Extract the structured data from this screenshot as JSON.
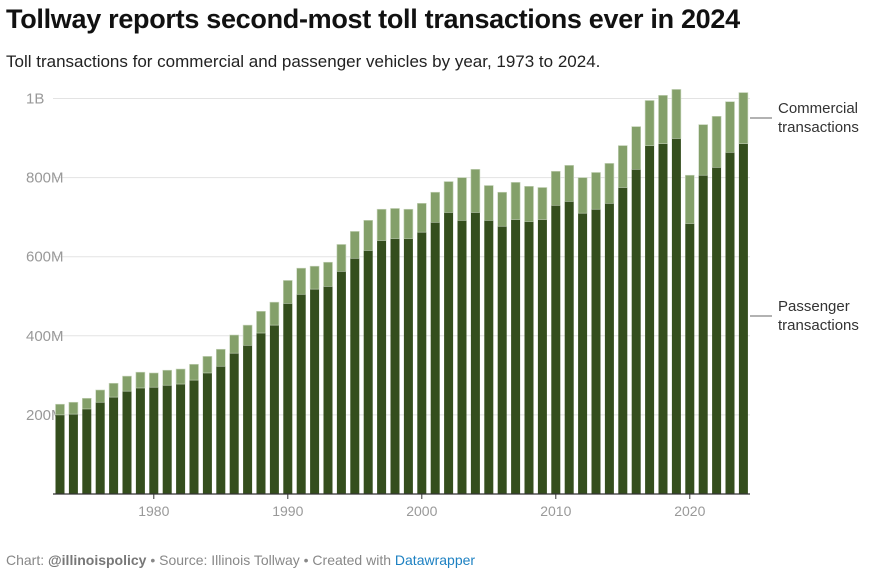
{
  "title": "Tollway reports second-most toll transactions ever in 2024",
  "subtitle": "Toll transactions for commercial and passenger vehicles by year, 1973 to 2024.",
  "footer": {
    "chart_label": "Chart:",
    "chart_author": "@illinoispolicy",
    "source": "• Source: Illinois Tollway",
    "created": "• Created with",
    "tool": "Datawrapper"
  },
  "colors": {
    "passenger": "#344e1d",
    "commercial": "#84a06a",
    "link": "#1d81c2"
  },
  "chart_data": {
    "type": "bar",
    "stacked": true,
    "title": "Tollway reports second-most toll transactions ever in 2024",
    "xlabel": "",
    "ylabel": "",
    "ylim": [
      0,
      1000000000
    ],
    "yticks": [
      200,
      400,
      600,
      800,
      1000
    ],
    "ytick_labels": [
      "200M",
      "400M",
      "600M",
      "800M",
      "1B"
    ],
    "xticks": [
      1980,
      1990,
      2000,
      2010,
      2020
    ],
    "grid": true,
    "units": "millions of transactions",
    "categories": [
      1973,
      1974,
      1975,
      1976,
      1977,
      1978,
      1979,
      1980,
      1981,
      1982,
      1983,
      1984,
      1985,
      1986,
      1987,
      1988,
      1989,
      1990,
      1991,
      1992,
      1993,
      1994,
      1995,
      1996,
      1997,
      1998,
      1999,
      2000,
      2001,
      2002,
      2003,
      2004,
      2005,
      2006,
      2007,
      2008,
      2009,
      2010,
      2011,
      2012,
      2013,
      2014,
      2015,
      2016,
      2017,
      2018,
      2019,
      2020,
      2021,
      2022,
      2023,
      2024
    ],
    "series": [
      {
        "name": "Passenger transactions",
        "color": "#344e1d",
        "values": [
          200,
          202,
          215,
          232,
          245,
          260,
          268,
          270,
          275,
          278,
          288,
          306,
          323,
          356,
          376,
          407,
          427,
          482,
          505,
          518,
          525,
          563,
          596,
          616,
          641,
          646,
          646,
          662,
          687,
          712,
          692,
          712,
          692,
          677,
          694,
          689,
          694,
          730,
          740,
          710,
          720,
          735,
          775,
          821,
          881,
          886,
          899,
          684,
          806,
          826,
          864,
          886
        ]
      },
      {
        "name": "Commercial transactions",
        "color": "#84a06a",
        "values": [
          27,
          30,
          27,
          31,
          35,
          38,
          40,
          36,
          38,
          38,
          40,
          42,
          43,
          46,
          51,
          55,
          58,
          58,
          66,
          58,
          61,
          68,
          68,
          76,
          79,
          76,
          74,
          73,
          76,
          78,
          108,
          109,
          88,
          86,
          94,
          89,
          81,
          86,
          91,
          90,
          93,
          101,
          106,
          108,
          114,
          122,
          124,
          122,
          128,
          129,
          128,
          129
        ]
      }
    ],
    "annotations": [
      "Commercial transactions",
      "Passenger transactions"
    ]
  }
}
